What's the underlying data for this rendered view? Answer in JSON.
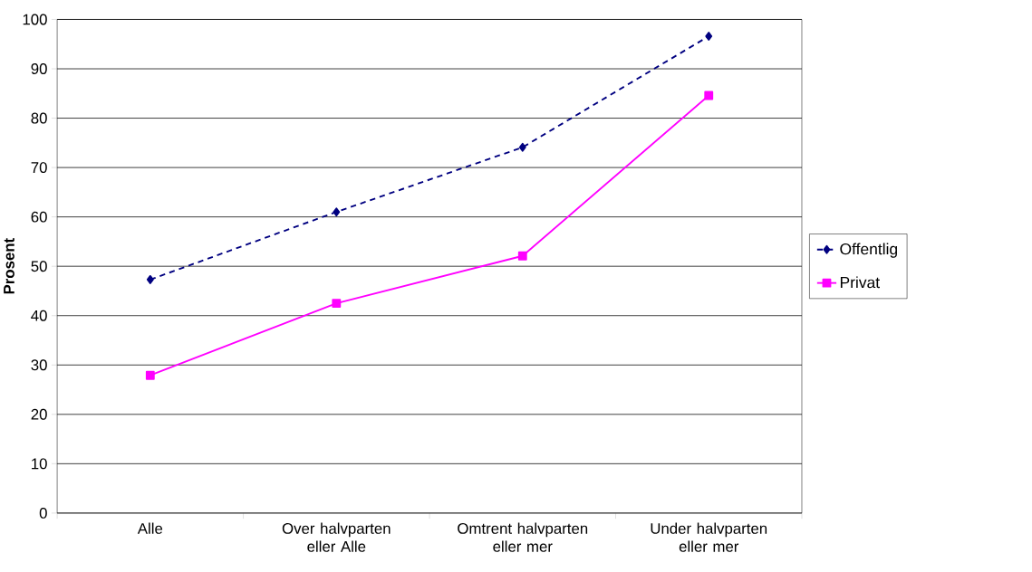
{
  "chart_data": {
    "type": "line",
    "ylabel": "Prosent",
    "categories": [
      "Alle",
      "Over halvparten eller Alle",
      "Omtrent halvparten eller mer",
      "Under halvparten eller mer"
    ],
    "series": [
      {
        "name": "Offentlig",
        "color": "#000080",
        "marker": "diamond",
        "line_style": "dashed",
        "values": [
          47.3,
          61.0,
          74.1,
          96.6
        ]
      },
      {
        "name": "Privat",
        "color": "#ff00ff",
        "marker": "square",
        "line_style": "solid",
        "values": [
          27.9,
          42.5,
          52.1,
          84.6
        ]
      }
    ],
    "ylim": [
      0,
      100
    ],
    "yticks": [
      0,
      10,
      20,
      30,
      40,
      50,
      60,
      70,
      80,
      90,
      100
    ],
    "grid": "y",
    "legend": "right"
  }
}
